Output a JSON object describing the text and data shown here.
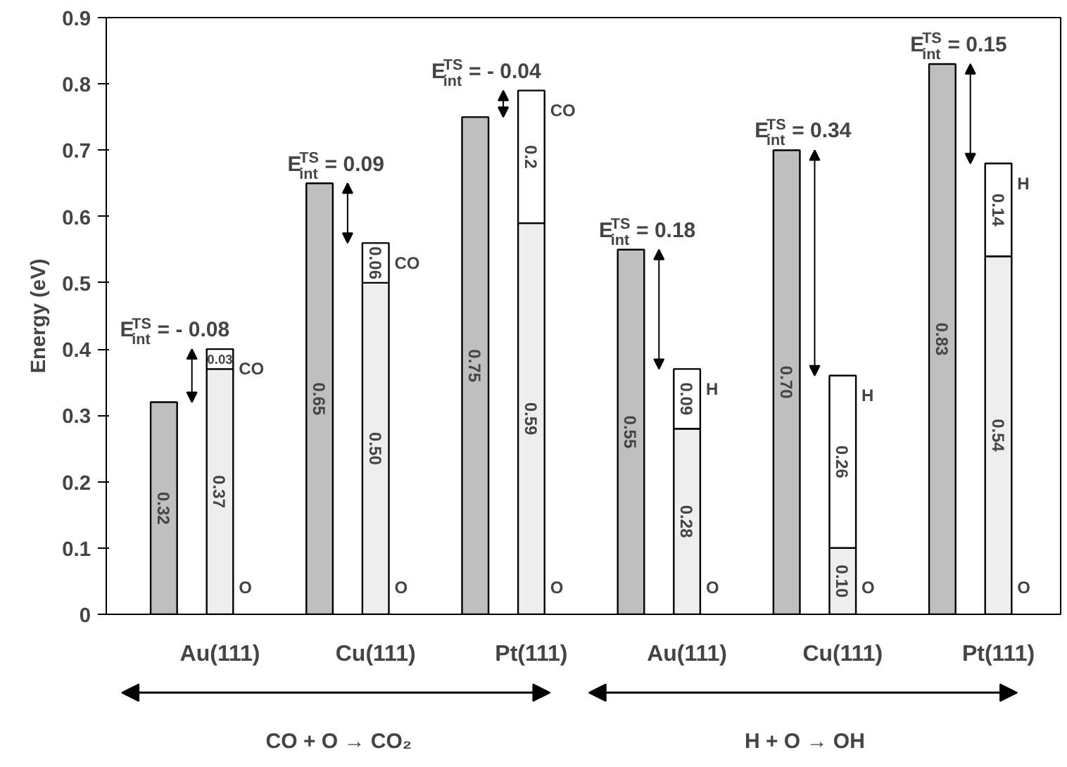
{
  "chart_data": {
    "type": "bar",
    "ylabel": "Energy (eV)",
    "stacked": true,
    "categories": [
      null,
      "Au(111)",
      null,
      "Cu(111)",
      null,
      "Pt(111)",
      null,
      "Au(111)",
      null,
      "Cu(111)",
      null,
      "Pt(111)"
    ],
    "series": [
      {
        "color": "#bfbfbf",
        "values": [
          0.32,
          null,
          0.65,
          null,
          0.75,
          null,
          0.55,
          null,
          0.7,
          null,
          0.83,
          null
        ],
        "value_labels": [
          "0.32",
          null,
          "0.65",
          null,
          "0.75",
          null,
          "0.55",
          null,
          "0.70",
          null,
          "0.83",
          null
        ]
      },
      {
        "name": "O",
        "color": "#eeeeee",
        "values": [
          null,
          0.37,
          null,
          0.5,
          null,
          0.59,
          null,
          0.28,
          null,
          0.1,
          null,
          0.54
        ],
        "value_labels": [
          null,
          "0.37",
          null,
          "0.50",
          null,
          "0.59",
          null,
          "0.28",
          null,
          "0.10",
          null,
          "0.54"
        ]
      },
      {
        "name": "CO",
        "color": "#ffffff",
        "values": [
          null,
          0.03,
          null,
          0.06,
          null,
          0.2,
          null,
          null,
          null,
          null,
          null,
          null
        ],
        "value_labels": [
          null,
          "0.03",
          null,
          "0.06",
          null,
          "0.2",
          null,
          null,
          null,
          null,
          null,
          null
        ]
      },
      {
        "name": "H",
        "color": "#ffffff",
        "values": [
          null,
          null,
          null,
          null,
          null,
          null,
          null,
          0.09,
          null,
          0.26,
          null,
          0.14
        ],
        "value_labels": [
          null,
          null,
          null,
          null,
          null,
          null,
          null,
          "0.09",
          null,
          "0.26",
          null,
          "0.14"
        ]
      }
    ],
    "ylim": [
      0,
      0.9
    ],
    "yticks": [
      0,
      0.1,
      0.2,
      0.3,
      0.4,
      0.5,
      0.6,
      0.7,
      0.8,
      0.9
    ],
    "annotations": [
      "E$_{int}$$^{TS}$ = - 0.08",
      "E$_{int}$$^{TS}$ = 0.09",
      "E$_{int}$$^{TS}$ = - 0.04",
      "E$_{int}$$^{TS}$ = 0.18",
      "E$_{int}$$^{TS}$ = 0.34",
      "E$_{int}$$^{TS}$ = 0.15",
      "CO + O → CO₂",
      "H + O → OH"
    ]
  }
}
